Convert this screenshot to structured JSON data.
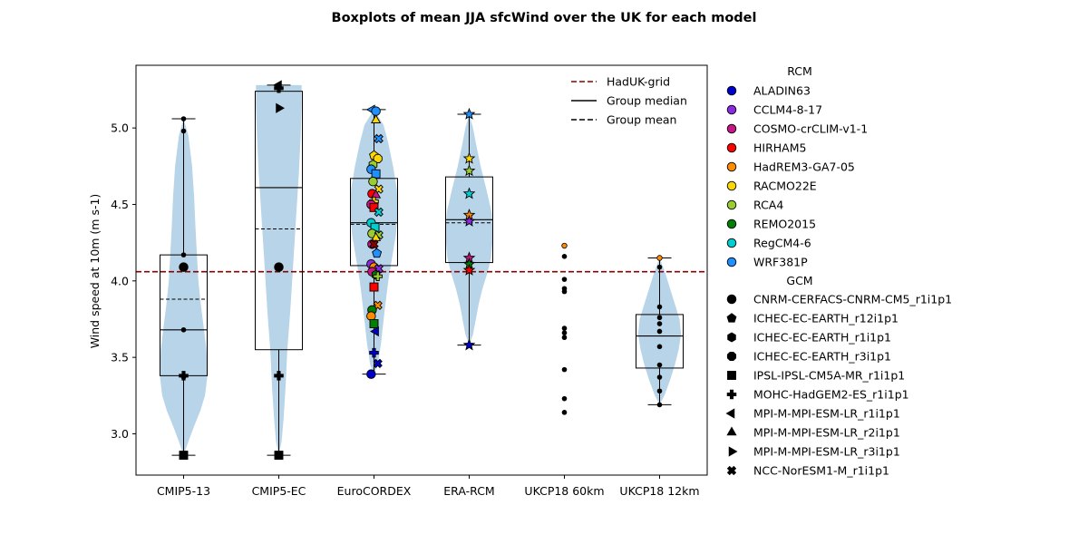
{
  "chart_data": {
    "type": "boxplot",
    "title": "Boxplots of mean JJA sfcWind over the UK for each model",
    "ylabel": "Wind speed at 10m (m s-1)",
    "xlabel": "",
    "ylim": [
      2.73,
      5.41
    ],
    "yticks": [
      "3.0",
      "3.5",
      "4.0",
      "4.5",
      "5.0"
    ],
    "reference_line": {
      "label": "HadUK-grid",
      "value": 4.06,
      "color": "#8b0000"
    },
    "line_legend": [
      {
        "label": "HadUK-grid",
        "style": "dashed",
        "color": "#8b0000"
      },
      {
        "label": "Group median",
        "style": "solid",
        "color": "#000000"
      },
      {
        "label": "Group mean",
        "style": "dashed",
        "color": "#000000"
      }
    ],
    "rcm_legend_title": "RCM",
    "rcms": [
      {
        "label": "ALADIN63",
        "color": "#0000cd"
      },
      {
        "label": "CCLM4-8-17",
        "color": "#8a2be2"
      },
      {
        "label": "COSMO-crCLIM-v1-1",
        "color": "#c71585"
      },
      {
        "label": "HIRHAM5",
        "color": "#ff0000"
      },
      {
        "label": "HadREM3-GA7-05",
        "color": "#ff8c00"
      },
      {
        "label": "RACMO22E",
        "color": "#ffd700"
      },
      {
        "label": "RCA4",
        "color": "#9acd32"
      },
      {
        "label": "REMO2015",
        "color": "#008000"
      },
      {
        "label": "RegCM4-6",
        "color": "#00ced1"
      },
      {
        "label": "WRF381P",
        "color": "#1e90ff"
      }
    ],
    "gcm_legend_title": "GCM",
    "gcms": [
      {
        "label": "CNRM-CERFACS-CNRM-CM5_r1i1p1",
        "marker": "circle"
      },
      {
        "label": "ICHEC-EC-EARTH_r12i1p1",
        "marker": "pentagon"
      },
      {
        "label": "ICHEC-EC-EARTH_r1i1p1",
        "marker": "hexagon"
      },
      {
        "label": "ICHEC-EC-EARTH_r3i1p1",
        "marker": "octagon"
      },
      {
        "label": "IPSL-IPSL-CM5A-MR_r1i1p1",
        "marker": "square"
      },
      {
        "label": "MOHC-HadGEM2-ES_r1i1p1",
        "marker": "plus"
      },
      {
        "label": "MPI-M-MPI-ESM-LR_r1i1p1",
        "marker": "triangle-left"
      },
      {
        "label": "MPI-M-MPI-ESM-LR_r2i1p1",
        "marker": "triangle-up"
      },
      {
        "label": "MPI-M-MPI-ESM-LR_r3i1p1",
        "marker": "triangle-right"
      },
      {
        "label": "NCC-NorESM1-M_r1i1p1",
        "marker": "x"
      }
    ],
    "categories": [
      "CMIP5-13",
      "CMIP5-EC",
      "EuroCORDEX",
      "ERA-RCM",
      "UKCP18 60km",
      "UKCP18 12km"
    ],
    "groups": [
      {
        "name": "CMIP5-13",
        "box": {
          "min": 2.86,
          "q1": 3.38,
          "median": 3.68,
          "q3": 4.17,
          "max": 5.06
        },
        "mean": 3.88,
        "violin": [
          [
            2.86,
            0.0
          ],
          [
            2.95,
            0.1
          ],
          [
            3.05,
            0.22
          ],
          [
            3.15,
            0.35
          ],
          [
            3.25,
            0.45
          ],
          [
            3.38,
            0.5
          ],
          [
            3.55,
            0.48
          ],
          [
            3.7,
            0.42
          ],
          [
            3.85,
            0.36
          ],
          [
            4.0,
            0.31
          ],
          [
            4.17,
            0.28
          ],
          [
            4.35,
            0.25
          ],
          [
            4.55,
            0.22
          ],
          [
            4.75,
            0.18
          ],
          [
            4.95,
            0.1
          ],
          [
            5.06,
            0.0
          ]
        ],
        "points": [
          {
            "y": 5.06,
            "marker": "dot",
            "color": "#000000"
          },
          {
            "y": 4.98,
            "marker": "dot",
            "color": "#000000"
          },
          {
            "y": 4.17,
            "marker": "dot",
            "color": "#000000"
          },
          {
            "y": 4.09,
            "marker": "circle",
            "color": "#000000"
          },
          {
            "y": 3.68,
            "marker": "dot",
            "color": "#000000"
          },
          {
            "y": 3.38,
            "marker": "plus",
            "color": "#000000"
          },
          {
            "y": 3.37,
            "marker": "dot",
            "color": "#000000"
          },
          {
            "y": 2.86,
            "marker": "square",
            "color": "#000000"
          }
        ]
      },
      {
        "name": "CMIP5-EC",
        "box": {
          "min": 2.86,
          "q1": 3.55,
          "median": 4.61,
          "q3": 5.24,
          "max": 5.28
        },
        "mean": 4.34,
        "violin": [
          [
            2.86,
            0.0
          ],
          [
            2.95,
            0.06
          ],
          [
            3.1,
            0.1
          ],
          [
            3.3,
            0.14
          ],
          [
            3.55,
            0.18
          ],
          [
            3.8,
            0.24
          ],
          [
            4.1,
            0.3
          ],
          [
            4.4,
            0.36
          ],
          [
            4.7,
            0.42
          ],
          [
            4.95,
            0.46
          ],
          [
            5.15,
            0.48
          ],
          [
            5.28,
            0.48
          ]
        ],
        "points": [
          {
            "y": 5.28,
            "marker": "triangle-left",
            "color": "#000000"
          },
          {
            "y": 5.26,
            "marker": "plus",
            "color": "#000000"
          },
          {
            "y": 5.13,
            "marker": "triangle-right",
            "color": "#000000"
          },
          {
            "y": 4.09,
            "marker": "circle",
            "color": "#000000"
          },
          {
            "y": 3.38,
            "marker": "plus",
            "color": "#000000"
          },
          {
            "y": 2.86,
            "marker": "square",
            "color": "#000000"
          }
        ]
      },
      {
        "name": "EuroCORDEX",
        "box": {
          "min": 3.39,
          "q1": 4.1,
          "median": 4.38,
          "q3": 4.67,
          "max": 5.12
        },
        "mean": 4.37,
        "violin": [
          [
            3.39,
            0.0
          ],
          [
            3.45,
            0.08
          ],
          [
            3.6,
            0.15
          ],
          [
            3.8,
            0.22
          ],
          [
            4.0,
            0.3
          ],
          [
            4.15,
            0.38
          ],
          [
            4.3,
            0.46
          ],
          [
            4.45,
            0.5
          ],
          [
            4.6,
            0.48
          ],
          [
            4.75,
            0.4
          ],
          [
            4.9,
            0.3
          ],
          [
            5.02,
            0.2
          ],
          [
            5.12,
            0.0
          ]
        ],
        "points": [
          {
            "y": 5.12,
            "marker": "triangle-left",
            "color": "#1e90ff",
            "dx": -0.02
          },
          {
            "y": 5.11,
            "marker": "circle",
            "color": "#1e90ff",
            "dx": 0.02
          },
          {
            "y": 5.05,
            "marker": "triangle-up",
            "color": "#ffd700",
            "dx": 0.02
          },
          {
            "y": 4.93,
            "marker": "x",
            "color": "#1e90ff",
            "dx": 0.05
          },
          {
            "y": 4.82,
            "marker": "pentagon",
            "color": "#ffd700",
            "dx": 0.0
          },
          {
            "y": 4.8,
            "marker": "octagon",
            "color": "#ffd700",
            "dx": 0.04
          },
          {
            "y": 4.76,
            "marker": "hexagon",
            "color": "#9acd32",
            "dx": -0.01
          },
          {
            "y": 4.73,
            "marker": "circle",
            "color": "#1e90ff",
            "dx": -0.03
          },
          {
            "y": 4.7,
            "marker": "square",
            "color": "#1e90ff",
            "dx": 0.02
          },
          {
            "y": 4.65,
            "marker": "circle",
            "color": "#9acd32",
            "dx": -0.01
          },
          {
            "y": 4.6,
            "marker": "x",
            "color": "#ffd700",
            "dx": 0.05
          },
          {
            "y": 4.57,
            "marker": "circle",
            "color": "#ff0000",
            "dx": -0.02
          },
          {
            "y": 4.56,
            "marker": "triangle-up",
            "color": "#c71585",
            "dx": 0.02
          },
          {
            "y": 4.52,
            "marker": "plus",
            "color": "#ffd700",
            "dx": 0.0
          },
          {
            "y": 4.5,
            "marker": "circle",
            "color": "#c71585",
            "dx": -0.03
          },
          {
            "y": 4.48,
            "marker": "square",
            "color": "#ff0000",
            "dx": 0.0
          },
          {
            "y": 4.45,
            "marker": "x",
            "color": "#00ced1",
            "dx": 0.05
          },
          {
            "y": 4.38,
            "marker": "circle",
            "color": "#00ced1",
            "dx": -0.03
          },
          {
            "y": 4.35,
            "marker": "square",
            "color": "#00ced1",
            "dx": 0.01
          },
          {
            "y": 4.31,
            "marker": "circle",
            "color": "#9acd32",
            "dx": -0.02
          },
          {
            "y": 4.3,
            "marker": "x",
            "color": "#9acd32",
            "dx": 0.05
          },
          {
            "y": 4.28,
            "marker": "triangle-up",
            "color": "#ffd700",
            "dx": 0.02
          },
          {
            "y": 4.24,
            "marker": "circle",
            "color": "#c71585",
            "dx": -0.02
          },
          {
            "y": 4.24,
            "marker": "x",
            "color": "#8b0000",
            "dx": 0.0
          },
          {
            "y": 4.18,
            "marker": "pentagon",
            "color": "#1e90ff",
            "dx": 0.03
          },
          {
            "y": 4.11,
            "marker": "circle",
            "color": "#8a2be2",
            "dx": -0.03
          },
          {
            "y": 4.09,
            "marker": "circle",
            "color": "#ff8c00",
            "dx": 0.0
          },
          {
            "y": 4.08,
            "marker": "x",
            "color": "#8a2be2",
            "dx": 0.05
          },
          {
            "y": 4.06,
            "marker": "circle",
            "color": "#c71585",
            "dx": -0.02
          },
          {
            "y": 4.04,
            "marker": "hexagon",
            "color": "#008000",
            "dx": 0.02
          },
          {
            "y": 4.03,
            "marker": "plus",
            "color": "#9acd32",
            "dx": 0.04
          },
          {
            "y": 3.96,
            "marker": "square",
            "color": "#ff0000",
            "dx": 0.0
          },
          {
            "y": 3.84,
            "marker": "x",
            "color": "#ff8c00",
            "dx": 0.04
          },
          {
            "y": 3.81,
            "marker": "circle",
            "color": "#008000",
            "dx": -0.02
          },
          {
            "y": 3.77,
            "marker": "circle",
            "color": "#ff8c00",
            "dx": -0.03
          },
          {
            "y": 3.72,
            "marker": "square",
            "color": "#008000",
            "dx": 0.0
          },
          {
            "y": 3.67,
            "marker": "triangle-left",
            "color": "#0000cd",
            "dx": 0.02
          },
          {
            "y": 3.53,
            "marker": "plus",
            "color": "#0000cd",
            "dx": 0.0
          },
          {
            "y": 3.46,
            "marker": "x",
            "color": "#0000cd",
            "dx": 0.04
          },
          {
            "y": 3.39,
            "marker": "circle",
            "color": "#0000cd",
            "dx": -0.03
          }
        ]
      },
      {
        "name": "ERA-RCM",
        "box": {
          "min": 3.58,
          "q1": 4.12,
          "median": 4.4,
          "q3": 4.68,
          "max": 5.09
        },
        "mean": 4.38,
        "violin": [
          [
            3.58,
            0.0
          ],
          [
            3.65,
            0.08
          ],
          [
            3.75,
            0.14
          ],
          [
            3.85,
            0.2
          ],
          [
            3.95,
            0.28
          ],
          [
            4.05,
            0.38
          ],
          [
            4.15,
            0.46
          ],
          [
            4.3,
            0.5
          ],
          [
            4.45,
            0.47
          ],
          [
            4.6,
            0.36
          ],
          [
            4.75,
            0.24
          ],
          [
            4.9,
            0.14
          ],
          [
            5.0,
            0.08
          ],
          [
            5.09,
            0.0
          ]
        ],
        "points": [
          {
            "y": 5.09,
            "marker": "star",
            "color": "#1e90ff"
          },
          {
            "y": 4.8,
            "marker": "star",
            "color": "#ffd700"
          },
          {
            "y": 4.72,
            "marker": "star",
            "color": "#9acd32"
          },
          {
            "y": 4.57,
            "marker": "star",
            "color": "#00ced1"
          },
          {
            "y": 4.43,
            "marker": "star",
            "color": "#ff8c00"
          },
          {
            "y": 4.39,
            "marker": "star",
            "color": "#8a2be2"
          },
          {
            "y": 4.15,
            "marker": "star",
            "color": "#c71585"
          },
          {
            "y": 4.11,
            "marker": "star",
            "color": "#008000"
          },
          {
            "y": 4.07,
            "marker": "star",
            "color": "#ff0000"
          },
          {
            "y": 3.58,
            "marker": "star",
            "color": "#0000cd"
          }
        ]
      },
      {
        "name": "UKCP18 60km",
        "points": [
          {
            "y": 4.23,
            "marker": "dot",
            "color": "#ff8c00"
          },
          {
            "y": 4.16,
            "marker": "dot",
            "color": "#000000"
          },
          {
            "y": 4.01,
            "marker": "dot",
            "color": "#000000"
          },
          {
            "y": 3.95,
            "marker": "dot",
            "color": "#000000"
          },
          {
            "y": 3.93,
            "marker": "dot",
            "color": "#000000"
          },
          {
            "y": 3.69,
            "marker": "dot",
            "color": "#000000"
          },
          {
            "y": 3.66,
            "marker": "dot",
            "color": "#000000"
          },
          {
            "y": 3.63,
            "marker": "dot",
            "color": "#000000"
          },
          {
            "y": 3.42,
            "marker": "dot",
            "color": "#000000"
          },
          {
            "y": 3.23,
            "marker": "dot",
            "color": "#000000"
          },
          {
            "y": 3.14,
            "marker": "dot",
            "color": "#000000"
          }
        ]
      },
      {
        "name": "UKCP18 12km",
        "box": {
          "min": 3.19,
          "q1": 3.43,
          "median": 3.64,
          "q3": 3.78,
          "max": 4.15
        },
        "mean": 3.64,
        "violin": [
          [
            3.19,
            0.0
          ],
          [
            3.25,
            0.1
          ],
          [
            3.35,
            0.22
          ],
          [
            3.45,
            0.32
          ],
          [
            3.55,
            0.4
          ],
          [
            3.65,
            0.45
          ],
          [
            3.75,
            0.42
          ],
          [
            3.85,
            0.32
          ],
          [
            3.95,
            0.22
          ],
          [
            4.05,
            0.12
          ],
          [
            4.15,
            0.0
          ]
        ],
        "points": [
          {
            "y": 4.15,
            "marker": "dot",
            "color": "#ff8c00"
          },
          {
            "y": 4.09,
            "marker": "dot",
            "color": "#000000"
          },
          {
            "y": 3.83,
            "marker": "dot",
            "color": "#000000"
          },
          {
            "y": 3.76,
            "marker": "dot",
            "color": "#000000"
          },
          {
            "y": 3.72,
            "marker": "dot",
            "color": "#000000"
          },
          {
            "y": 3.67,
            "marker": "dot",
            "color": "#000000"
          },
          {
            "y": 3.57,
            "marker": "dot",
            "color": "#000000"
          },
          {
            "y": 3.45,
            "marker": "dot",
            "color": "#000000"
          },
          {
            "y": 3.37,
            "marker": "dot",
            "color": "#000000"
          },
          {
            "y": 3.28,
            "marker": "dot",
            "color": "#000000"
          },
          {
            "y": 3.19,
            "marker": "dot",
            "color": "#000000"
          }
        ]
      }
    ],
    "violin_color": "#b8d4e8"
  }
}
